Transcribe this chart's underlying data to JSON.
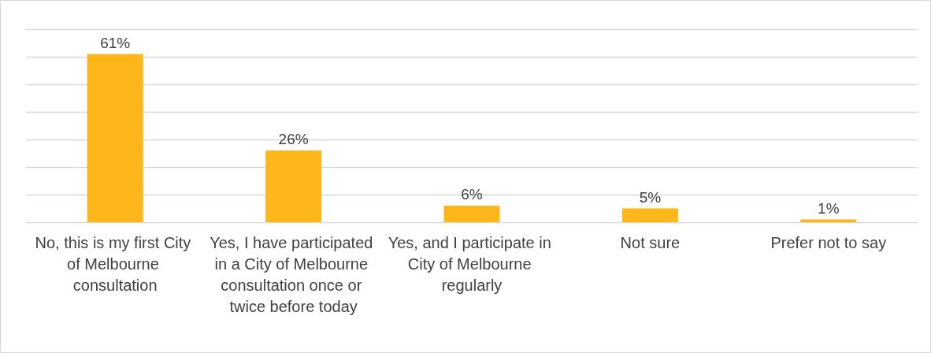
{
  "chart_data": {
    "type": "bar",
    "categories": [
      "No, this is my first City of Melbourne consultation",
      "Yes, I have participated in a City of Melbourne consultation once or twice before today",
      "Yes, and I participate in City of Melbourne regularly",
      "Not sure",
      "Prefer not to say"
    ],
    "values": [
      61,
      26,
      6,
      5,
      1
    ],
    "value_labels": [
      "61%",
      "26%",
      "6%",
      "5%",
      "1%"
    ],
    "color": "#fdb71a",
    "ylim": [
      0,
      70
    ],
    "yticks": [
      0,
      10,
      20,
      30,
      40,
      50,
      60,
      70
    ],
    "grid": "y",
    "tick_labels": "x"
  }
}
